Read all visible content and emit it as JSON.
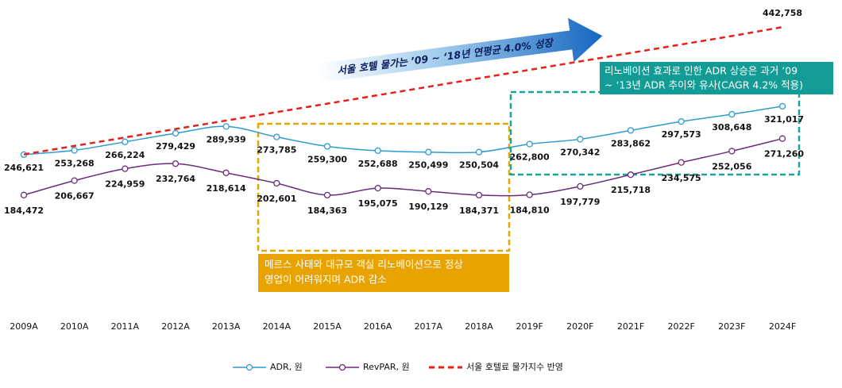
{
  "chart_data": {
    "type": "line",
    "categories": [
      "2009A",
      "2010A",
      "2011A",
      "2012A",
      "2013A",
      "2014A",
      "2015A",
      "2016A",
      "2017A",
      "2018A",
      "2019F",
      "2020F",
      "2021F",
      "2022F",
      "2023F",
      "2024F"
    ],
    "ylim": [
      0,
      460000
    ],
    "series": [
      {
        "name": "ADR, 원",
        "color": "#2e9ad0",
        "marker": true,
        "values": [
          246621,
          253268,
          266224,
          279429,
          289939,
          273785,
          259300,
          252688,
          250499,
          250504,
          262800,
          270342,
          283862,
          297573,
          308648,
          321017
        ],
        "value_labels": [
          "246,621",
          "253,268",
          "266,224",
          "279,429",
          "289,939",
          "273,785",
          "259,300",
          "252,688",
          "250,499",
          "250,504",
          "262,800",
          "270,342",
          "283,862",
          "297,573",
          "308,648",
          "321,017"
        ]
      },
      {
        "name": "RevPAR, 원",
        "color": "#6b2c7a",
        "marker": true,
        "values": [
          184472,
          206667,
          224959,
          232764,
          218614,
          202601,
          184363,
          195075,
          190129,
          184371,
          184810,
          197779,
          215718,
          234575,
          252056,
          271260
        ],
        "value_labels": [
          "184,472",
          "206,667",
          "224,959",
          "232,764",
          "218,614",
          "202,601",
          "184,363",
          "195,075",
          "190,129",
          "184,371",
          "184,810",
          "197,779",
          "215,718",
          "234,575",
          "252,056",
          "271,260"
        ]
      },
      {
        "name": "서울 호텔료 물가지수 반영",
        "color": "#e3201b",
        "marker": false,
        "dashed": true,
        "values": [
          247000,
          260000,
          273000,
          286000,
          299000,
          312000,
          325000,
          338000,
          351000,
          364000,
          377000,
          390000,
          403000,
          416000,
          429000,
          442758
        ],
        "value_labels": [
          null,
          null,
          null,
          null,
          null,
          null,
          null,
          null,
          null,
          null,
          null,
          null,
          null,
          null,
          null,
          "442,758"
        ]
      }
    ],
    "annotations": [
      "서울 호텔 물가는 ’09 ~ ‘18년 연평균 4.0% 성장",
      [
        "메르스 사태와 대규모 객실 리노베이션으로 정상",
        "영업이 어려워지며 ADR 감소"
      ],
      [
        "리노베이션 효과로 인한 ADR 상승은 과거 ’09",
        "~ ‘13년 ADR 추이와 유사(CAGR 4.2% 적용)"
      ]
    ],
    "legend": "bottom"
  }
}
